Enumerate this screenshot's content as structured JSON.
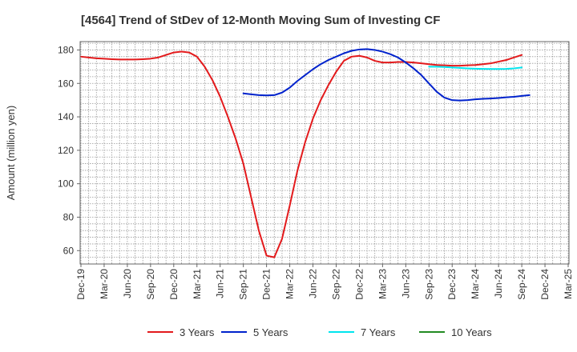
{
  "chart_data": {
    "type": "line",
    "title": "[4564]  Trend of StDev of 12-Month Moving Sum of Investing CF",
    "xlabel": "",
    "ylabel": "Amount (million yen)",
    "ylim": [
      52,
      185
    ],
    "yticks": [
      60,
      80,
      100,
      120,
      140,
      160,
      180
    ],
    "grid": true,
    "legend_position": "bottom",
    "x_tick_labels": [
      "Dec-19",
      "Mar-20",
      "Jun-20",
      "Sep-20",
      "Dec-20",
      "Mar-21",
      "Jun-21",
      "Sep-21",
      "Dec-21",
      "Mar-22",
      "Jun-22",
      "Sep-22",
      "Dec-22",
      "Mar-23",
      "Jun-23",
      "Sep-23",
      "Dec-23",
      "Mar-24",
      "Jun-24",
      "Sep-24",
      "Dec-24",
      "Mar-25"
    ],
    "x_months": [
      "2019-12",
      "2020-01",
      "2020-02",
      "2020-03",
      "2020-04",
      "2020-05",
      "2020-06",
      "2020-07",
      "2020-08",
      "2020-09",
      "2020-10",
      "2020-11",
      "2020-12",
      "2021-01",
      "2021-02",
      "2021-03",
      "2021-04",
      "2021-05",
      "2021-06",
      "2021-07",
      "2021-08",
      "2021-09",
      "2021-10",
      "2021-11",
      "2021-12",
      "2022-01",
      "2022-02",
      "2022-03",
      "2022-04",
      "2022-05",
      "2022-06",
      "2022-07",
      "2022-08",
      "2022-09",
      "2022-10",
      "2022-11",
      "2022-12",
      "2023-01",
      "2023-02",
      "2023-03",
      "2023-04",
      "2023-05",
      "2023-06",
      "2023-07",
      "2023-08",
      "2023-09",
      "2023-10",
      "2023-11",
      "2023-12",
      "2024-01",
      "2024-02",
      "2024-03",
      "2024-04",
      "2024-05",
      "2024-06",
      "2024-07",
      "2024-08",
      "2024-09",
      "2024-10",
      "2024-11",
      "2024-12",
      "2025-01",
      "2025-02",
      "2025-03"
    ],
    "series": [
      {
        "name": "3 Years",
        "color": "#e31a1c",
        "values": [
          176,
          175.5,
          175,
          174.8,
          174.5,
          174.3,
          174.3,
          174.3,
          174.5,
          174.8,
          175.5,
          177,
          178.5,
          179,
          178.5,
          176,
          170,
          162,
          152,
          140,
          127,
          112,
          92,
          72,
          57,
          56,
          67,
          87,
          108,
          125,
          139,
          150,
          159,
          167,
          173.5,
          176,
          176.5,
          175.5,
          173.5,
          172.5,
          172.5,
          172.8,
          172.8,
          172.5,
          172,
          171.5,
          171,
          170.8,
          170.6,
          170.6,
          170.8,
          171,
          171.5,
          172,
          173,
          174,
          175.5,
          177,
          null,
          null,
          null,
          null,
          null,
          null
        ]
      },
      {
        "name": "5 Years",
        "color": "#0022cc",
        "values": [
          null,
          null,
          null,
          null,
          null,
          null,
          null,
          null,
          null,
          null,
          null,
          null,
          null,
          null,
          null,
          null,
          null,
          null,
          null,
          null,
          null,
          154,
          153.5,
          153,
          152.8,
          153,
          154.5,
          157.5,
          161.5,
          165,
          168.5,
          171.5,
          174,
          176,
          178,
          179.5,
          180.3,
          180.5,
          180,
          179,
          177.5,
          175.5,
          172.5,
          169,
          165,
          160,
          155,
          151.5,
          150,
          149.8,
          150,
          150.5,
          150.8,
          151,
          151.3,
          151.7,
          152,
          152.5,
          153,
          null,
          null,
          null,
          null,
          null
        ]
      },
      {
        "name": "7 Years",
        "color": "#00e5ee",
        "values": [
          null,
          null,
          null,
          null,
          null,
          null,
          null,
          null,
          null,
          null,
          null,
          null,
          null,
          null,
          null,
          null,
          null,
          null,
          null,
          null,
          null,
          null,
          null,
          null,
          null,
          null,
          null,
          null,
          null,
          null,
          null,
          null,
          null,
          null,
          null,
          null,
          null,
          null,
          null,
          null,
          null,
          null,
          null,
          null,
          null,
          170,
          170,
          169.8,
          169.5,
          169.3,
          169,
          168.8,
          168.7,
          168.6,
          168.6,
          168.7,
          169,
          169.5,
          null,
          null,
          null,
          null,
          null,
          null
        ]
      },
      {
        "name": "10 Years",
        "color": "#228b22",
        "values": []
      }
    ]
  }
}
